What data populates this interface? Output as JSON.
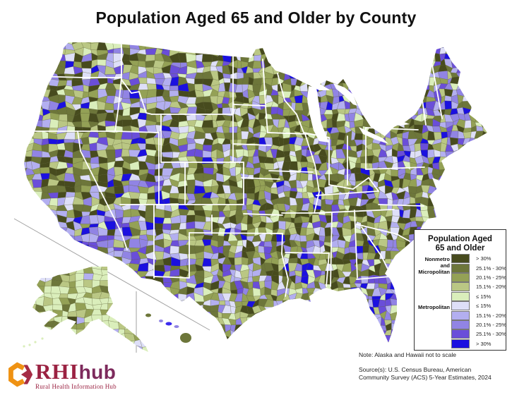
{
  "title": "Population Aged 65 and Older by County",
  "legend": {
    "title_line1": "Population Aged",
    "title_line2": "65 and Older",
    "nonmetro_label_lines": [
      "Nonmetro",
      "and",
      "Micropolitan"
    ],
    "metro_label": "Metropolitan",
    "classes": [
      {
        "group": "Nonmetro and Micropolitan",
        "label": "> 30%",
        "color": "#474b1e"
      },
      {
        "group": "Nonmetro and Micropolitan",
        "label": "25.1% - 30%",
        "color": "#6d763a"
      },
      {
        "group": "Nonmetro and Micropolitan",
        "label": "20.1% - 25%",
        "color": "#94a156"
      },
      {
        "group": "Nonmetro and Micropolitan",
        "label": "15.1% - 20%",
        "color": "#bac784"
      },
      {
        "group": "Nonmetro and Micropolitan",
        "label": "≤ 15%",
        "color": "#daeebb"
      },
      {
        "group": "Metropolitan",
        "label": "≤ 15%",
        "color": "#dedff8"
      },
      {
        "group": "Metropolitan",
        "label": "15.1% - 20%",
        "color": "#b3aff0"
      },
      {
        "group": "Metropolitan",
        "label": "20.1% - 25%",
        "color": "#9184e4"
      },
      {
        "group": "Metropolitan",
        "label": "25.1% - 30%",
        "color": "#6a4ed9"
      },
      {
        "group": "Metropolitan",
        "label": "> 30%",
        "color": "#1b10e0"
      }
    ]
  },
  "notes": {
    "scale_note": "Note: Alaska and Hawaii not to scale",
    "source_line1": "Source(s): U.S. Census Bureau, American",
    "source_line2": "Community Survey (ACS) 5-Year Estimates, 2024"
  },
  "logo": {
    "acronym": "RHI",
    "suffix": "hub",
    "tagline": "Rural Health Information Hub",
    "orange": "#ef9213",
    "maroon": "#a52c45"
  },
  "map": {
    "palette": {
      "green_gt30": "#474b1e",
      "green_25_30": "#6d763a",
      "green_20_25": "#94a156",
      "green_15_20": "#bac784",
      "green_le15": "#daeebb",
      "purple_le15": "#dedff8",
      "purple_15_20": "#b3aff0",
      "purple_20_25": "#9184e4",
      "purple_25_30": "#6a4ed9",
      "purple_gt30": "#1b10e0"
    },
    "county_border_color": "#4f5526",
    "state_border_color": "#ffffff",
    "separator_color": "#a0a0a0",
    "water_color": "#ffffff"
  },
  "chart_data": {
    "type": "choropleth_map",
    "title": "Population Aged 65 and Older by County",
    "geography": "United States counties",
    "insets": [
      "Alaska",
      "Hawaii"
    ],
    "legend_position": "lower right",
    "classification": {
      "Nonmetro and Micropolitan": [
        {
          "label": "> 30%",
          "color": "#474b1e"
        },
        {
          "label": "25.1% - 30%",
          "color": "#6d763a"
        },
        {
          "label": "20.1% - 25%",
          "color": "#94a156"
        },
        {
          "label": "15.1% - 20%",
          "color": "#bac784"
        },
        {
          "label": "≤ 15%",
          "color": "#daeebb"
        }
      ],
      "Metropolitan": [
        {
          "label": "≤ 15%",
          "color": "#dedff8"
        },
        {
          "label": "15.1% - 20%",
          "color": "#b3aff0"
        },
        {
          "label": "20.1% - 25%",
          "color": "#9184e4"
        },
        {
          "label": "25.1% - 30%",
          "color": "#6a4ed9"
        },
        {
          "label": "> 30%",
          "color": "#1b10e0"
        }
      ]
    },
    "note": "Alaska and Hawaii not to scale",
    "source": "U.S. Census Bureau, American Community Survey (ACS) 5-Year Estimates, 2024"
  }
}
